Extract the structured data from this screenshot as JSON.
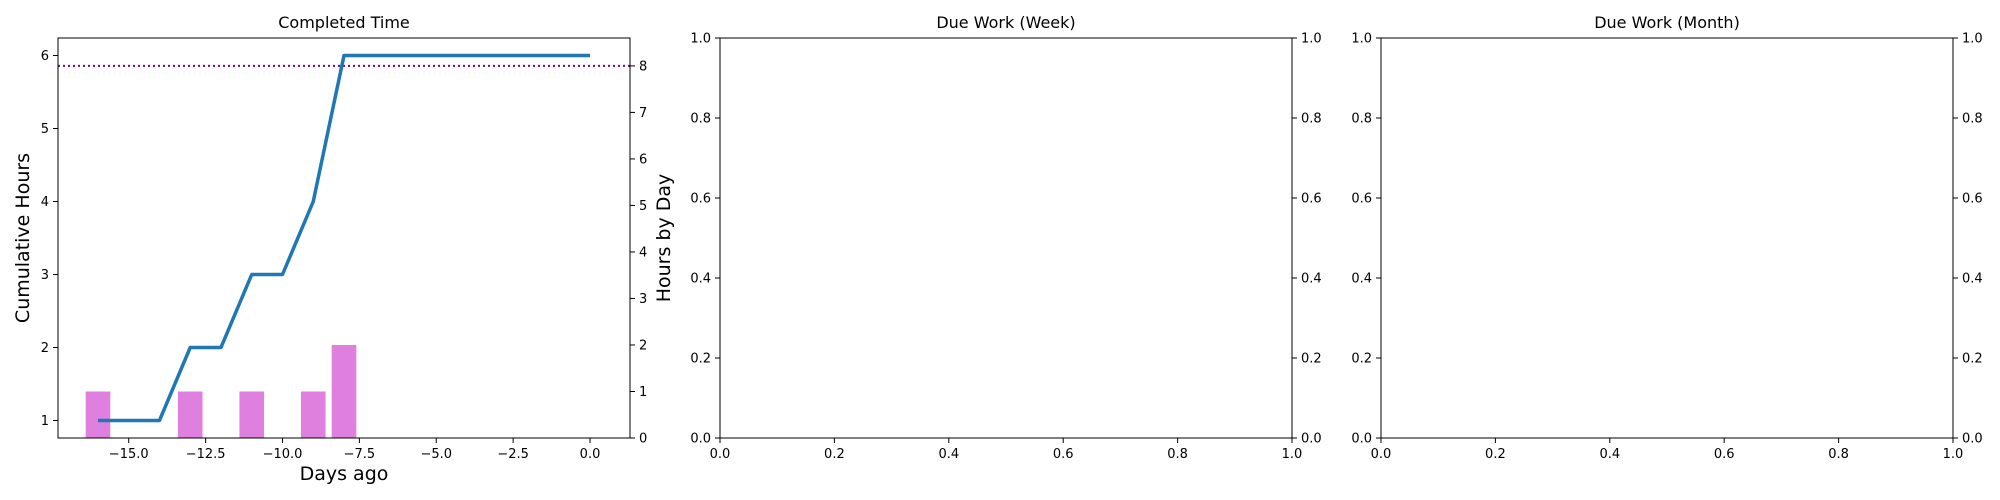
{
  "chart_data": [
    {
      "type": "bar+line",
      "title": "Completed Time",
      "xlabel": "Days ago",
      "ylabel": "Cumulative Hours",
      "y2label": "Hours by Day",
      "xlim": [
        -17.3,
        1.3
      ],
      "ylim": [
        0.76,
        6.24
      ],
      "y2lim": [
        0,
        8.6
      ],
      "x_ticks": [
        -15.0,
        -12.5,
        -10.0,
        -7.5,
        -5.0,
        -2.5,
        0.0
      ],
      "x_tick_labels": [
        "−15.0",
        "−12.5",
        "−10.0",
        "−7.5",
        "−5.0",
        "−2.5",
        "0.0"
      ],
      "y_ticks": [
        1,
        2,
        3,
        4,
        5,
        6
      ],
      "y_tick_labels": [
        "1",
        "2",
        "3",
        "4",
        "5",
        "6"
      ],
      "y2_ticks": [
        0,
        1,
        2,
        3,
        4,
        5,
        6,
        7,
        8
      ],
      "y2_tick_labels": [
        "0",
        "1",
        "2",
        "3",
        "4",
        "5",
        "6",
        "7",
        "8"
      ],
      "bars": {
        "axis": "right",
        "color": "#df80df",
        "x": [
          -16,
          -13,
          -11,
          -9,
          -8
        ],
        "values": [
          1,
          1,
          1,
          1,
          2
        ]
      },
      "line": {
        "axis": "left",
        "color": "#1f77b4",
        "x": [
          -16,
          -15,
          -14,
          -13,
          -12,
          -11,
          -10,
          -9,
          -8,
          -7,
          -6,
          -5,
          -4,
          -3,
          -2,
          -1,
          0
        ],
        "values": [
          1,
          1,
          1,
          2,
          2,
          3,
          3,
          4,
          6,
          6,
          6,
          6,
          6,
          6,
          6,
          6,
          6
        ]
      },
      "reference_line": {
        "axis": "right",
        "value": 8,
        "color": "#800080",
        "style": "dotted"
      }
    },
    {
      "type": "empty",
      "title": "Due Work (Week)",
      "xlim": [
        0,
        1
      ],
      "ylim": [
        0,
        1
      ],
      "y2lim": [
        0,
        1
      ],
      "x_ticks": [
        0,
        0.2,
        0.4,
        0.6,
        0.8,
        1.0
      ],
      "x_tick_labels": [
        "0.0",
        "0.2",
        "0.4",
        "0.6",
        "0.8",
        "1.0"
      ],
      "y_ticks": [
        0,
        0.2,
        0.4,
        0.6,
        0.8,
        1.0
      ],
      "y_tick_labels": [
        "0.0",
        "0.2",
        "0.4",
        "0.6",
        "0.8",
        "1.0"
      ],
      "y2_ticks": [
        0,
        0.2,
        0.4,
        0.6,
        0.8,
        1.0
      ],
      "y2_tick_labels": [
        "0.0",
        "0.2",
        "0.4",
        "0.6",
        "0.8",
        "1.0"
      ]
    },
    {
      "type": "empty",
      "title": "Due Work (Month)",
      "xlim": [
        0,
        1
      ],
      "ylim": [
        0,
        1
      ],
      "y2lim": [
        0,
        1
      ],
      "x_ticks": [
        0,
        0.2,
        0.4,
        0.6,
        0.8,
        1.0
      ],
      "x_tick_labels": [
        "0.0",
        "0.2",
        "0.4",
        "0.6",
        "0.8",
        "1.0"
      ],
      "y_ticks": [
        0,
        0.2,
        0.4,
        0.6,
        0.8,
        1.0
      ],
      "y_tick_labels": [
        "0.0",
        "0.2",
        "0.4",
        "0.6",
        "0.8",
        "1.0"
      ],
      "y2_ticks": [
        0,
        0.2,
        0.4,
        0.6,
        0.8,
        1.0
      ],
      "y2_tick_labels": [
        "0.0",
        "0.2",
        "0.4",
        "0.6",
        "0.8",
        "1.0"
      ]
    }
  ]
}
